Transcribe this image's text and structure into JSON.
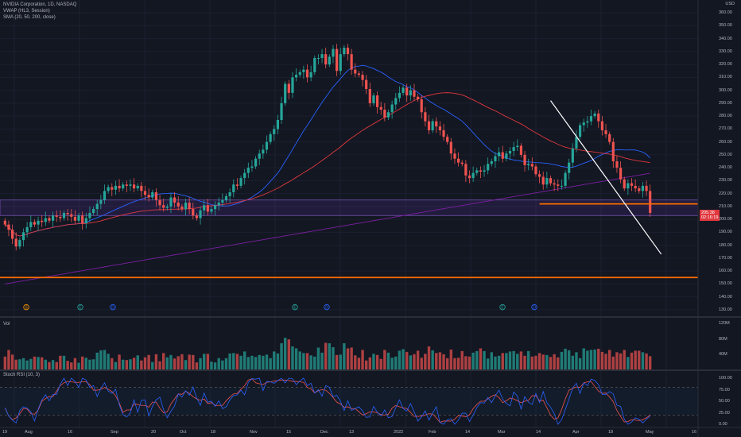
{
  "legend": {
    "symbol": "NVIDIA Corporation, 1D, NASDAQ",
    "vwap": "VWAP (HL3, Session)",
    "sma": "SMA (20, 50, 200, close)"
  },
  "currency": "USD",
  "price_axis_labels": [
    "360.00",
    "350.00",
    "340.00",
    "330.00",
    "320.00",
    "310.00",
    "300.00",
    "290.00",
    "280.00",
    "270.00",
    "260.00",
    "250.00",
    "240.00",
    "230.00",
    "220.00",
    "210.00",
    "200.00",
    "190.00",
    "180.00",
    "170.00",
    "160.00",
    "150.00",
    "140.00",
    "130.00"
  ],
  "last_price": {
    "price": "205.38",
    "countdown": "02:16:19"
  },
  "volume_pane": {
    "label": "Vol",
    "axis_labels": [
      "120M",
      "80M",
      "40M"
    ]
  },
  "stoch_pane": {
    "label": "Stoch RSI (10, 3)",
    "axis_labels": [
      "100.00",
      "75.00",
      "50.00",
      "25.00",
      "0.00"
    ]
  },
  "time_axis": [
    "19",
    "Aug",
    "16",
    "Sep",
    "20",
    "Oct",
    "18",
    "Nov",
    "15",
    "Dec",
    "13",
    "2022",
    "Feb",
    "14",
    "Mar",
    "14",
    "Apr",
    "18",
    "May",
    "16"
  ],
  "event_markers": [
    "S",
    "E",
    "D",
    "E",
    "D",
    "E",
    "D"
  ],
  "colors": {
    "bg": "#131722",
    "up": "#26a69a",
    "down": "#ef5350",
    "sma20": "#2962ff",
    "sma50": "#e0383e",
    "sma200": "#7b1fa2",
    "level": "#ff6d00",
    "trend": "#ffffff",
    "stoch_k": "#2962ff",
    "stoch_d": "#ef5350"
  },
  "chart_data": {
    "type": "candlestick",
    "price_ylim": [
      125,
      365
    ],
    "closes": [
      196,
      192,
      185,
      179,
      184,
      190,
      194,
      198,
      196,
      199,
      198,
      201,
      199,
      203,
      202,
      201,
      205,
      204,
      202,
      199,
      203,
      197,
      201,
      205,
      208,
      212,
      215,
      222,
      225,
      223,
      226,
      224,
      227,
      226,
      227,
      224,
      226,
      222,
      219,
      217,
      221,
      215,
      211,
      209,
      210,
      217,
      213,
      210,
      208,
      213,
      208,
      203,
      201,
      207,
      211,
      206,
      208,
      211,
      213,
      215,
      218,
      221,
      227,
      226,
      232,
      236,
      240,
      241,
      247,
      251,
      254,
      260,
      266,
      270,
      277,
      290,
      305,
      298,
      310,
      312,
      314,
      316,
      310,
      314,
      325,
      325,
      328,
      320,
      326,
      332,
      315,
      328,
      333,
      328,
      316,
      313,
      312,
      308,
      301,
      290,
      296,
      287,
      285,
      279,
      283,
      289,
      294,
      298,
      302,
      296,
      300,
      295,
      293,
      283,
      276,
      269,
      276,
      272,
      269,
      264,
      260,
      251,
      247,
      244,
      243,
      234,
      232,
      236,
      238,
      237,
      238,
      243,
      245,
      249,
      252,
      247,
      251,
      253,
      256,
      257,
      250,
      242,
      243,
      241,
      235,
      233,
      227,
      232,
      228,
      227,
      226,
      226,
      236,
      244,
      255,
      264,
      273,
      275,
      276,
      280,
      282,
      276,
      269,
      266,
      260,
      245,
      240,
      231,
      224,
      228,
      226,
      224,
      222,
      226,
      222,
      205
    ],
    "volume_ylim": [
      0,
      130
    ],
    "volumes": [
      35,
      52,
      40,
      27,
      28,
      31,
      25,
      29,
      35,
      34,
      33,
      27,
      21,
      26,
      21,
      37,
      37,
      24,
      20,
      31,
      19,
      35,
      32,
      27,
      28,
      45,
      51,
      52,
      42,
      31,
      21,
      40,
      27,
      26,
      28,
      32,
      38,
      25,
      33,
      39,
      21,
      41,
      23,
      44,
      33,
      39,
      30,
      36,
      41,
      26,
      40,
      39,
      20,
      31,
      42,
      42,
      22,
      20,
      31,
      25,
      31,
      43,
      44,
      42,
      37,
      48,
      34,
      37,
      34,
      39,
      37,
      40,
      31,
      48,
      43,
      69,
      83,
      79,
      61,
      56,
      48,
      44,
      44,
      38,
      35,
      58,
      45,
      70,
      69,
      59,
      39,
      40,
      69,
      56,
      58,
      38,
      32,
      52,
      25,
      33,
      42,
      39,
      29,
      52,
      45,
      32,
      35,
      50,
      54,
      47,
      38,
      41,
      50,
      32,
      42,
      61,
      51,
      44,
      46,
      41,
      31,
      53,
      31,
      32,
      49,
      36,
      35,
      45,
      49,
      56,
      49,
      30,
      46,
      35,
      37,
      44,
      44,
      48,
      49,
      42,
      48,
      37,
      49,
      35,
      37,
      44,
      40,
      39,
      34,
      41,
      33,
      47,
      55,
      51,
      37,
      46,
      31,
      56,
      50,
      52,
      53,
      55,
      47,
      42,
      52,
      35,
      46,
      43,
      52,
      34,
      45,
      50,
      50,
      46,
      43,
      36
    ],
    "stoch_ylim": [
      0,
      100
    ],
    "stoch_k": [
      36,
      18,
      9,
      3,
      30,
      38,
      35,
      27,
      7,
      33,
      53,
      64,
      51,
      65,
      65,
      87,
      100,
      84,
      100,
      93,
      80,
      100,
      96,
      80,
      84,
      60,
      78,
      90,
      72,
      67,
      76,
      42,
      21,
      16,
      25,
      53,
      26,
      52,
      53,
      18,
      39,
      53,
      59,
      32,
      14,
      28,
      40,
      66,
      59,
      73,
      63,
      81,
      57,
      41,
      68,
      48,
      50,
      39,
      51,
      34,
      38,
      53,
      62,
      64,
      74,
      64,
      91,
      99,
      98,
      100,
      73,
      93,
      92,
      89,
      95,
      100,
      90,
      100,
      99,
      86,
      94,
      100,
      84,
      89,
      68,
      75,
      61,
      84,
      80,
      60,
      63,
      50,
      30,
      51,
      30,
      34,
      38,
      29,
      15,
      16,
      39,
      26,
      18,
      31,
      14,
      17,
      36,
      53,
      34,
      29,
      45,
      27,
      7,
      16,
      29,
      9,
      24,
      38,
      4,
      0,
      10,
      12,
      0,
      9,
      24,
      24,
      6,
      20,
      36,
      47,
      46,
      58,
      47,
      62,
      74,
      55,
      45,
      40,
      70,
      61,
      33,
      60,
      48,
      43,
      67,
      47,
      71,
      47,
      37,
      23,
      0,
      10,
      32,
      55,
      79,
      89,
      67,
      90,
      84,
      98,
      95,
      86,
      65,
      65,
      71,
      66,
      41,
      39,
      11,
      0,
      5,
      14,
      11,
      3,
      11,
      18
    ],
    "stoch_d": [
      35,
      18,
      10,
      14,
      23,
      34,
      33,
      23,
      22,
      31,
      50,
      56,
      60,
      60,
      72,
      84,
      90,
      93,
      92,
      91,
      91,
      92,
      92,
      86,
      74,
      74,
      76,
      80,
      76,
      71,
      62,
      46,
      26,
      31,
      31,
      44,
      43,
      41,
      41,
      37,
      48,
      48,
      35,
      25,
      27,
      44,
      55,
      66,
      65,
      72,
      67,
      60,
      55,
      52,
      55,
      45,
      47,
      41,
      41,
      41,
      51,
      59,
      66,
      67,
      76,
      84,
      96,
      99,
      90,
      88,
      86,
      91,
      92,
      94,
      95,
      96,
      96,
      95,
      93,
      93,
      92,
      91,
      80,
      77,
      68,
      73,
      75,
      74,
      67,
      58,
      48,
      44,
      37,
      38,
      34,
      34,
      27,
      20,
      23,
      27,
      27,
      25,
      21,
      20,
      22,
      35,
      41,
      38,
      36,
      34,
      26,
      17,
      17,
      18,
      20,
      23,
      22,
      14,
      4,
      7,
      7,
      7,
      11,
      19,
      18,
      16,
      21,
      34,
      43,
      50,
      50,
      55,
      61,
      64,
      58,
      47,
      51,
      57,
      55,
      51,
      47,
      50,
      52,
      62,
      62,
      51,
      52,
      36,
      20,
      11,
      14,
      32,
      55,
      74,
      78,
      81,
      80,
      90,
      92,
      93,
      82,
      72,
      67,
      68,
      59,
      49,
      30,
      17,
      5,
      6,
      10,
      9,
      8,
      10,
      14,
      20
    ],
    "levels": [
      {
        "price": 212
      },
      {
        "price": 155
      }
    ],
    "zone": {
      "from": 203,
      "to": 215
    },
    "trendline": [
      {
        "bar": 148,
        "price": 292
      },
      {
        "bar": 175,
        "price": 185
      }
    ]
  }
}
